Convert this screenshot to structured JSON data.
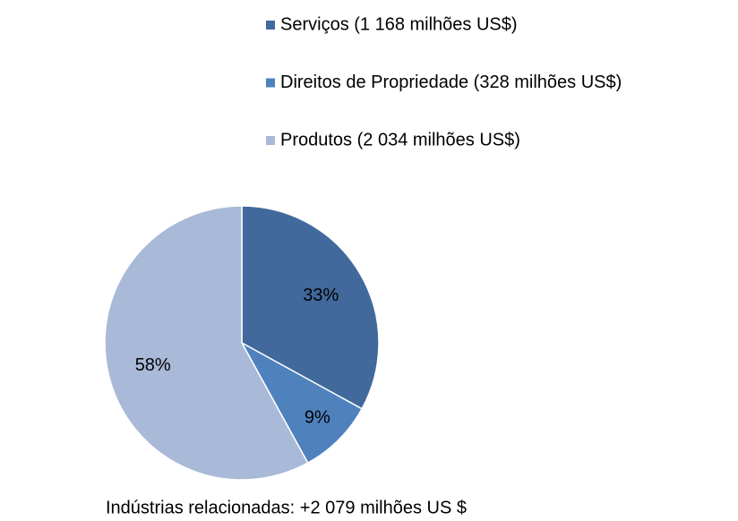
{
  "chart_data": {
    "type": "pie",
    "categories": [
      "Serviços (1 168 milhões US$)",
      "Direitos de Propriedade (328 milhões US$)",
      "Produtos (2 034 milhões US$)"
    ],
    "values": [
      33,
      9,
      58
    ],
    "value_labels": [
      "33%",
      "9%",
      "58%"
    ],
    "colors": [
      "#41699c",
      "#4f81bd",
      "#a9b9d8"
    ],
    "legend": "top",
    "annotation": "Indústrias relacionadas: +2 079 milhões US $"
  }
}
